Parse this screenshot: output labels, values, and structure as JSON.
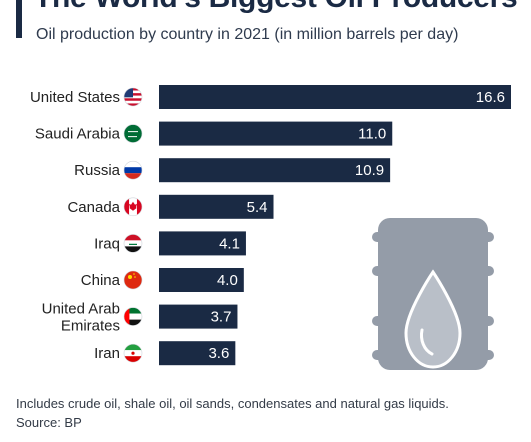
{
  "header": {
    "title": "The World's Biggest Oil Producers",
    "subtitle": "Oil production by country in 2021 (in million barrels per day)"
  },
  "footer": {
    "note": "Includes crude oil, shale oil, oil sands, condensates and natural gas liquids.",
    "source": "Source: BP"
  },
  "colors": {
    "bar": "#1a2a44",
    "bar_label": "#ffffff",
    "barrel": "#949ca8",
    "barrel_light": "#b9bfc8",
    "drop": "#ffffff"
  },
  "icons": [
    "flag-us-icon",
    "flag-saudi-arabia-icon",
    "flag-russia-icon",
    "flag-canada-icon",
    "flag-iraq-icon",
    "flag-china-icon",
    "flag-uae-icon",
    "flag-iran-icon",
    "oil-barrel-icon"
  ],
  "chart_data": {
    "type": "bar",
    "orientation": "horizontal",
    "title": "The World's Biggest Oil Producers",
    "subtitle": "Oil production by country in 2021 (in million barrels per day)",
    "categories": [
      "United States",
      "Saudi Arabia",
      "Russia",
      "Canada",
      "Iraq",
      "China",
      "United Arab Emirates",
      "Iran"
    ],
    "values": [
      16.6,
      11.0,
      10.9,
      5.4,
      4.1,
      4.0,
      3.7,
      3.6
    ],
    "value_labels": [
      "16.6",
      "11.0",
      "10.9",
      "5.4",
      "4.1",
      "4.0",
      "3.7",
      "3.6"
    ],
    "xlim": [
      0,
      16.6
    ],
    "grid": false,
    "legend": "none"
  }
}
